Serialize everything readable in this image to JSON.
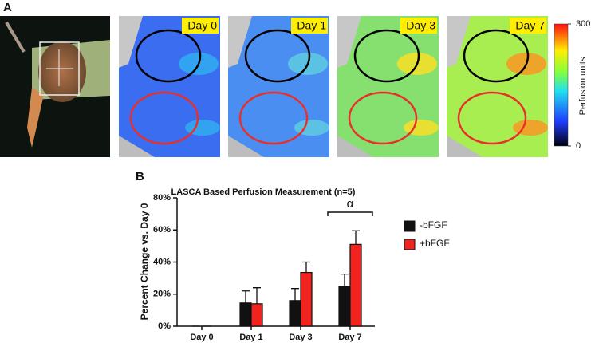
{
  "panel_a": {
    "label": "A",
    "days": [
      "Day 0",
      "Day 1",
      "Day 3",
      "Day 7"
    ],
    "colorbar": {
      "label": "Perfusion units",
      "ticks": [
        0,
        300
      ]
    }
  },
  "chart_data": {
    "type": "bar",
    "panel_label": "B",
    "title": "LASCA Based Perfusion Measurement (n=5)",
    "y_label": "Percent Change vs. Day 0",
    "categories": [
      "Day 0",
      "Day 1",
      "Day 3",
      "Day 7"
    ],
    "series": [
      {
        "name": "-bFGF",
        "color": "#111111",
        "values": [
          0,
          14.5,
          16,
          25
        ],
        "errors": [
          0,
          7.5,
          7.5,
          7.5
        ]
      },
      {
        "name": "+bFGF",
        "color": "#f0231e",
        "values": [
          0,
          14,
          33.5,
          51
        ],
        "errors": [
          0,
          10,
          6.5,
          8.5
        ]
      }
    ],
    "ylim": [
      0,
      80
    ],
    "yticks": [
      {
        "value": 0,
        "label": "0%"
      },
      {
        "value": 20,
        "label": "20%"
      },
      {
        "value": 40,
        "label": "40%"
      },
      {
        "value": 60,
        "label": "60%"
      },
      {
        "value": 80,
        "label": "80%"
      }
    ],
    "annotation": "α",
    "legend": "right"
  }
}
